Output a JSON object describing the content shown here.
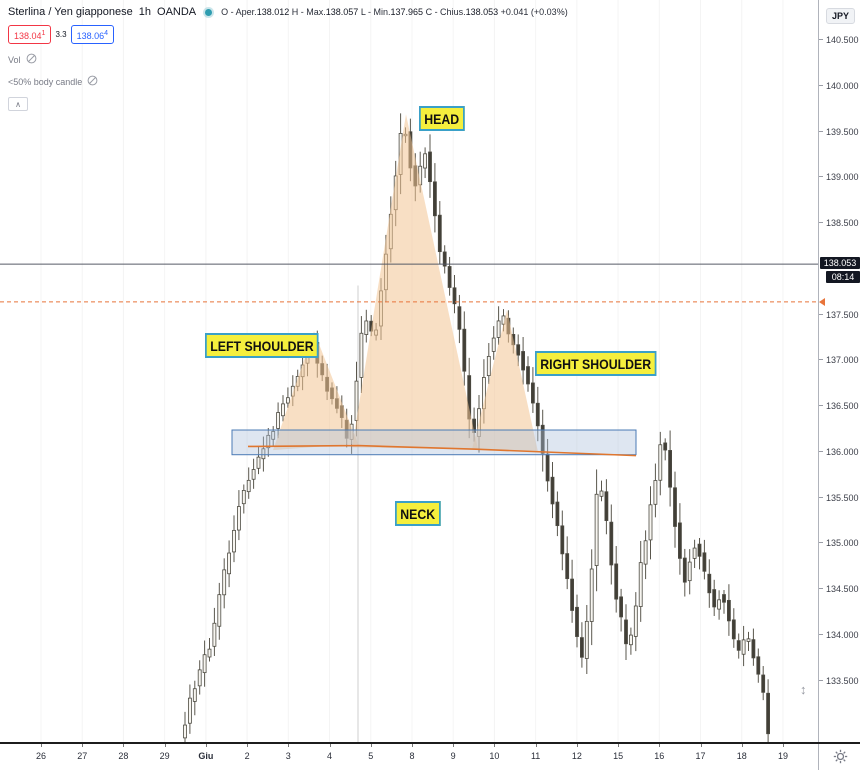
{
  "header": {
    "symbol": "Sterlina / Yen giapponese",
    "timeframe": "1h",
    "exchange": "OANDA",
    "ohlc": [
      {
        "k": "O - Aper.",
        "v": "138.012"
      },
      {
        "k": "H - Max.",
        "v": "138.057"
      },
      {
        "k": "L - Min.",
        "v": "137.965"
      },
      {
        "k": "C - Chius.",
        "v": "138.053"
      }
    ],
    "change": "+0.041 (+0.03%)",
    "sell_price": "138.04",
    "sell_sup": "1",
    "spread": "3.3",
    "buy_price": "138.06",
    "buy_sup": "4",
    "indicators": [
      {
        "name": "Vol"
      },
      {
        "name": "<50% body candle"
      }
    ],
    "collapse_glyph": "∧"
  },
  "annotations": {
    "head": "HEAD",
    "left_shoulder": "LEFT SHOULDER",
    "right_shoulder": "RIGHT SHOULDER",
    "neck": "NECK"
  },
  "price_axis": {
    "currency_badge": "JPY",
    "last_price": "138.053",
    "countdown": "08:14",
    "ticks": [
      "140.500",
      "140.000",
      "139.500",
      "139.000",
      "138.500",
      "137.500",
      "137.000",
      "136.500",
      "136.000",
      "135.500",
      "135.000",
      "134.500",
      "134.000",
      "133.500"
    ]
  },
  "time_axis": {
    "ticks": [
      "26",
      "27",
      "28",
      "29",
      "Giu",
      "2",
      "3",
      "4",
      "5",
      "8",
      "9",
      "10",
      "11",
      "12",
      "15",
      "16",
      "17",
      "18",
      "19"
    ]
  },
  "colors": {
    "accent_sell": "#f23645",
    "accent_buy": "#2962ff",
    "label_bg": "#f5ef3d",
    "label_border": "#3aa0c8",
    "pattern_fill": "rgba(242,197,148,0.55)",
    "neck_fill": "rgba(173,192,221,0.40)",
    "neck_border": "#4a7ab5",
    "neckline": "#e0762e",
    "alert_line": "#e8743a",
    "price_line": "#565a66",
    "candle_up": "#f7f5f0",
    "candle_down": "#423f37",
    "candle_border": "#4d4b42",
    "wick": "#5a574d",
    "grid": "#f4f4f4",
    "session_line": "#cfcfcf",
    "badge_bg": "#131722"
  },
  "chart_data": {
    "type": "candlestick",
    "title": "Sterlina / Yen giapponese 1h OANDA (GBP/JPY) - head and shoulders pattern",
    "timeframe": "1h",
    "ylabel": "JPY price",
    "ylim": [
      132.83,
      140.94
    ],
    "grid": "vertical-faint",
    "candle_x_start": 185,
    "candle_x_end": 771,
    "candle_spacing": 4.9,
    "path": [
      [
        185,
        132.87
      ],
      [
        192,
        133.29
      ],
      [
        198,
        133.45
      ],
      [
        205,
        133.72
      ],
      [
        212,
        133.86
      ],
      [
        218,
        134.16
      ],
      [
        224,
        134.6
      ],
      [
        230,
        134.82
      ],
      [
        237,
        135.15
      ],
      [
        243,
        135.51
      ],
      [
        250,
        135.69
      ],
      [
        257,
        135.82
      ],
      [
        263,
        136.0
      ],
      [
        270,
        136.15
      ],
      [
        276,
        136.26
      ],
      [
        283,
        136.48
      ],
      [
        290,
        136.59
      ],
      [
        297,
        136.76
      ],
      [
        304,
        136.92
      ],
      [
        310,
        137.09
      ],
      [
        314,
        137.22
      ],
      [
        319,
        136.98
      ],
      [
        325,
        136.81
      ],
      [
        331,
        136.65
      ],
      [
        337,
        136.53
      ],
      [
        343,
        136.4
      ],
      [
        349,
        136.15
      ],
      [
        353,
        136.24
      ],
      [
        358,
        136.68
      ],
      [
        362,
        137.17
      ],
      [
        367,
        137.46
      ],
      [
        372,
        137.33
      ],
      [
        377,
        137.22
      ],
      [
        382,
        137.66
      ],
      [
        387,
        138.07
      ],
      [
        392,
        138.53
      ],
      [
        397,
        138.92
      ],
      [
        402,
        139.41
      ],
      [
        406,
        139.65
      ],
      [
        410,
        139.3
      ],
      [
        414,
        139.03
      ],
      [
        419,
        138.86
      ],
      [
        423,
        139.13
      ],
      [
        428,
        139.28
      ],
      [
        432,
        138.97
      ],
      [
        436,
        138.75
      ],
      [
        440,
        138.32
      ],
      [
        444,
        138.12
      ],
      [
        448,
        137.99
      ],
      [
        452,
        137.82
      ],
      [
        456,
        137.64
      ],
      [
        460,
        137.46
      ],
      [
        464,
        137.17
      ],
      [
        468,
        136.73
      ],
      [
        472,
        136.35
      ],
      [
        477,
        136.18
      ],
      [
        481,
        136.46
      ],
      [
        486,
        136.79
      ],
      [
        491,
        137.06
      ],
      [
        496,
        137.24
      ],
      [
        501,
        137.42
      ],
      [
        505,
        137.53
      ],
      [
        509,
        137.33
      ],
      [
        514,
        137.2
      ],
      [
        519,
        137.13
      ],
      [
        524,
        136.98
      ],
      [
        529,
        136.79
      ],
      [
        534,
        136.59
      ],
      [
        539,
        136.35
      ],
      [
        543,
        136.15
      ],
      [
        548,
        135.82
      ],
      [
        553,
        135.53
      ],
      [
        558,
        135.31
      ],
      [
        563,
        134.98
      ],
      [
        568,
        134.69
      ],
      [
        573,
        134.38
      ],
      [
        578,
        134.07
      ],
      [
        583,
        133.78
      ],
      [
        586,
        133.72
      ],
      [
        590,
        134.27
      ],
      [
        594,
        134.71
      ],
      [
        598,
        135.36
      ],
      [
        601,
        135.82
      ],
      [
        604,
        135.58
      ],
      [
        608,
        135.31
      ],
      [
        611,
        134.98
      ],
      [
        615,
        134.65
      ],
      [
        619,
        134.38
      ],
      [
        623,
        134.22
      ],
      [
        627,
        134.0
      ],
      [
        631,
        133.78
      ],
      [
        635,
        134.11
      ],
      [
        639,
        134.38
      ],
      [
        643,
        134.76
      ],
      [
        647,
        134.95
      ],
      [
        651,
        135.31
      ],
      [
        655,
        135.53
      ],
      [
        659,
        135.72
      ],
      [
        663,
        136.13
      ],
      [
        666,
        136.18
      ],
      [
        670,
        135.8
      ],
      [
        674,
        135.47
      ],
      [
        678,
        135.17
      ],
      [
        682,
        134.87
      ],
      [
        686,
        134.6
      ],
      [
        690,
        134.54
      ],
      [
        694,
        135.04
      ],
      [
        698,
        134.95
      ],
      [
        702,
        134.87
      ],
      [
        706,
        134.71
      ],
      [
        710,
        134.54
      ],
      [
        714,
        134.38
      ],
      [
        718,
        134.25
      ],
      [
        722,
        134.43
      ],
      [
        726,
        134.38
      ],
      [
        730,
        134.22
      ],
      [
        734,
        134.05
      ],
      [
        738,
        133.89
      ],
      [
        742,
        133.78
      ],
      [
        746,
        133.92
      ],
      [
        750,
        134.0
      ],
      [
        754,
        133.83
      ],
      [
        758,
        133.69
      ],
      [
        762,
        133.52
      ],
      [
        766,
        133.37
      ],
      [
        770,
        132.9
      ]
    ],
    "overlays": {
      "triangles": [
        [
          [
            273,
            136.02
          ],
          [
            314,
            137.32
          ],
          [
            358,
            136.09
          ]
        ],
        [
          [
            352,
            136.05
          ],
          [
            406,
            139.69
          ],
          [
            478,
            136.03
          ]
        ],
        [
          [
            472,
            136.03
          ],
          [
            507,
            137.55
          ],
          [
            538,
            136.0
          ]
        ]
      ],
      "neck_zone": {
        "x": [
          232,
          636
        ],
        "price_top": 136.24,
        "price_bottom": 135.97
      },
      "neckline": [
        [
          248,
          136.06
        ],
        [
          358,
          136.07
        ],
        [
          476,
          136.03
        ],
        [
          636,
          135.96
        ]
      ],
      "price_line": 138.053,
      "alert_line": 137.64,
      "session_break": {
        "x": 358,
        "from_price": 137.82
      }
    }
  }
}
